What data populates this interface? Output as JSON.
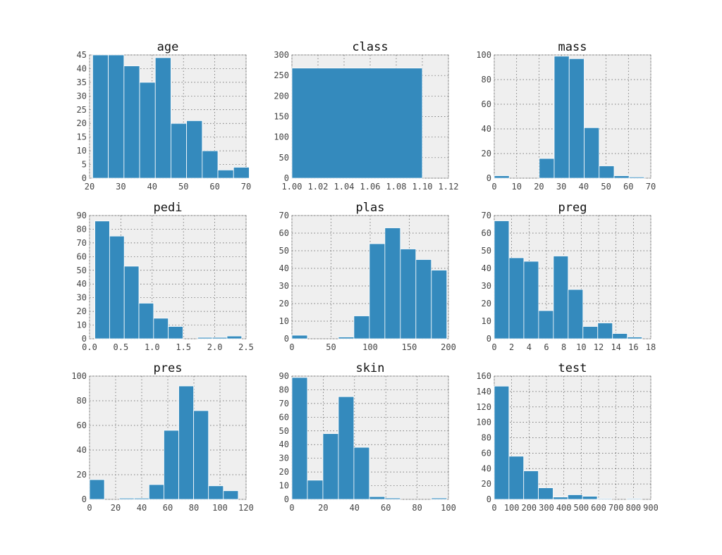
{
  "style": {
    "bar_color": "#348ABD",
    "panel_bg": "#EFEFEF",
    "grid": "dotted"
  },
  "chart_data": [
    {
      "type": "bar",
      "title": "age",
      "grid": true,
      "xlim": [
        20,
        70
      ],
      "ylim": [
        0,
        45
      ],
      "xticks": [
        20,
        30,
        40,
        50,
        60,
        70
      ],
      "yticks": [
        0,
        5,
        10,
        15,
        20,
        25,
        30,
        35,
        40,
        45
      ],
      "bin_edges": [
        21,
        26,
        31,
        36,
        41,
        46,
        51,
        56,
        61,
        66,
        71
      ],
      "counts": [
        45,
        45,
        41,
        35,
        44,
        20,
        21,
        10,
        3,
        4
      ]
    },
    {
      "type": "bar",
      "title": "class",
      "grid": true,
      "xlim": [
        1.0,
        1.12
      ],
      "ylim": [
        0,
        300
      ],
      "xticks": [
        "1.00",
        "1.02",
        "1.04",
        "1.06",
        "1.08",
        "1.10",
        "1.12"
      ],
      "yticks": [
        0,
        50,
        100,
        150,
        200,
        250,
        300
      ],
      "bin_edges": [
        1.0,
        1.1
      ],
      "counts": [
        268
      ]
    },
    {
      "type": "bar",
      "title": "mass",
      "grid": true,
      "xlim": [
        0,
        70
      ],
      "ylim": [
        0,
        100
      ],
      "xticks": [
        0,
        10,
        20,
        30,
        40,
        50,
        60,
        70
      ],
      "yticks": [
        0,
        20,
        40,
        60,
        80,
        100
      ],
      "bin_edges": [
        0,
        6.7,
        13.4,
        20.1,
        26.8,
        33.5,
        40.2,
        46.9,
        53.6,
        60.3,
        67.1
      ],
      "counts": [
        2,
        0,
        0,
        16,
        99,
        97,
        41,
        10,
        2,
        1
      ]
    },
    {
      "type": "bar",
      "title": "pedi",
      "grid": true,
      "xlim": [
        0,
        2.5
      ],
      "ylim": [
        0,
        90
      ],
      "xticks": [
        "0.0",
        "0.5",
        "1.0",
        "1.5",
        "2.0",
        "2.5"
      ],
      "yticks": [
        0,
        10,
        20,
        30,
        40,
        50,
        60,
        70,
        80,
        90
      ],
      "bin_edges": [
        0.085,
        0.3195,
        0.554,
        0.7885,
        1.023,
        1.2575,
        1.492,
        1.7265,
        1.961,
        2.1955,
        2.43
      ],
      "counts": [
        86,
        75,
        53,
        26,
        15,
        9,
        0,
        1,
        1,
        2
      ]
    },
    {
      "type": "bar",
      "title": "plas",
      "grid": true,
      "xlim": [
        0,
        200
      ],
      "ylim": [
        0,
        70
      ],
      "xticks": [
        0,
        50,
        100,
        150,
        200
      ],
      "yticks": [
        0,
        10,
        20,
        30,
        40,
        50,
        60,
        70
      ],
      "bin_edges": [
        0,
        19.8,
        39.6,
        59.4,
        79.2,
        99,
        118.8,
        138.6,
        158.4,
        178.2,
        198
      ],
      "counts": [
        2,
        0,
        0,
        1,
        13,
        54,
        63,
        51,
        45,
        39
      ]
    },
    {
      "type": "bar",
      "title": "preg",
      "grid": true,
      "xlim": [
        0,
        18
      ],
      "ylim": [
        0,
        70
      ],
      "xticks": [
        0,
        2,
        4,
        6,
        8,
        10,
        12,
        14,
        16,
        18
      ],
      "yticks": [
        0,
        10,
        20,
        30,
        40,
        50,
        60,
        70
      ],
      "bin_edges": [
        0,
        1.7,
        3.4,
        5.1,
        6.8,
        8.5,
        10.2,
        11.9,
        13.6,
        15.3,
        17
      ],
      "counts": [
        67,
        46,
        44,
        16,
        47,
        28,
        7,
        9,
        3,
        1
      ]
    },
    {
      "type": "bar",
      "title": "pres",
      "grid": true,
      "xlim": [
        0,
        120
      ],
      "ylim": [
        0,
        100
      ],
      "xticks": [
        0,
        20,
        40,
        60,
        80,
        100,
        120
      ],
      "yticks": [
        0,
        20,
        40,
        60,
        80,
        100
      ],
      "bin_edges": [
        0,
        11.4,
        22.8,
        34.2,
        45.6,
        57,
        68.4,
        79.8,
        91.2,
        102.6,
        114
      ],
      "counts": [
        16,
        0,
        1,
        1,
        12,
        56,
        92,
        72,
        11,
        7
      ]
    },
    {
      "type": "bar",
      "title": "skin",
      "grid": true,
      "xlim": [
        0,
        100
      ],
      "ylim": [
        0,
        90
      ],
      "xticks": [
        0,
        20,
        40,
        60,
        80,
        100
      ],
      "yticks": [
        0,
        10,
        20,
        30,
        40,
        50,
        60,
        70,
        80,
        90
      ],
      "bin_edges": [
        0,
        9.9,
        19.8,
        29.7,
        39.6,
        49.5,
        59.4,
        69.3,
        79.2,
        89.1,
        99
      ],
      "counts": [
        89,
        14,
        48,
        75,
        38,
        2,
        1,
        0,
        0,
        1
      ]
    },
    {
      "type": "bar",
      "title": "test",
      "grid": true,
      "xlim": [
        0,
        900
      ],
      "ylim": [
        0,
        160
      ],
      "xticks": [
        0,
        100,
        200,
        300,
        400,
        500,
        600,
        700,
        800,
        900
      ],
      "yticks": [
        0,
        20,
        40,
        60,
        80,
        100,
        120,
        140,
        160
      ],
      "bin_edges": [
        0,
        84.6,
        169.2,
        253.8,
        338.4,
        423,
        507.6,
        592.2,
        676.8,
        761.4,
        846
      ],
      "counts": [
        147,
        56,
        37,
        15,
        3,
        6,
        4,
        1,
        0,
        1
      ]
    }
  ]
}
